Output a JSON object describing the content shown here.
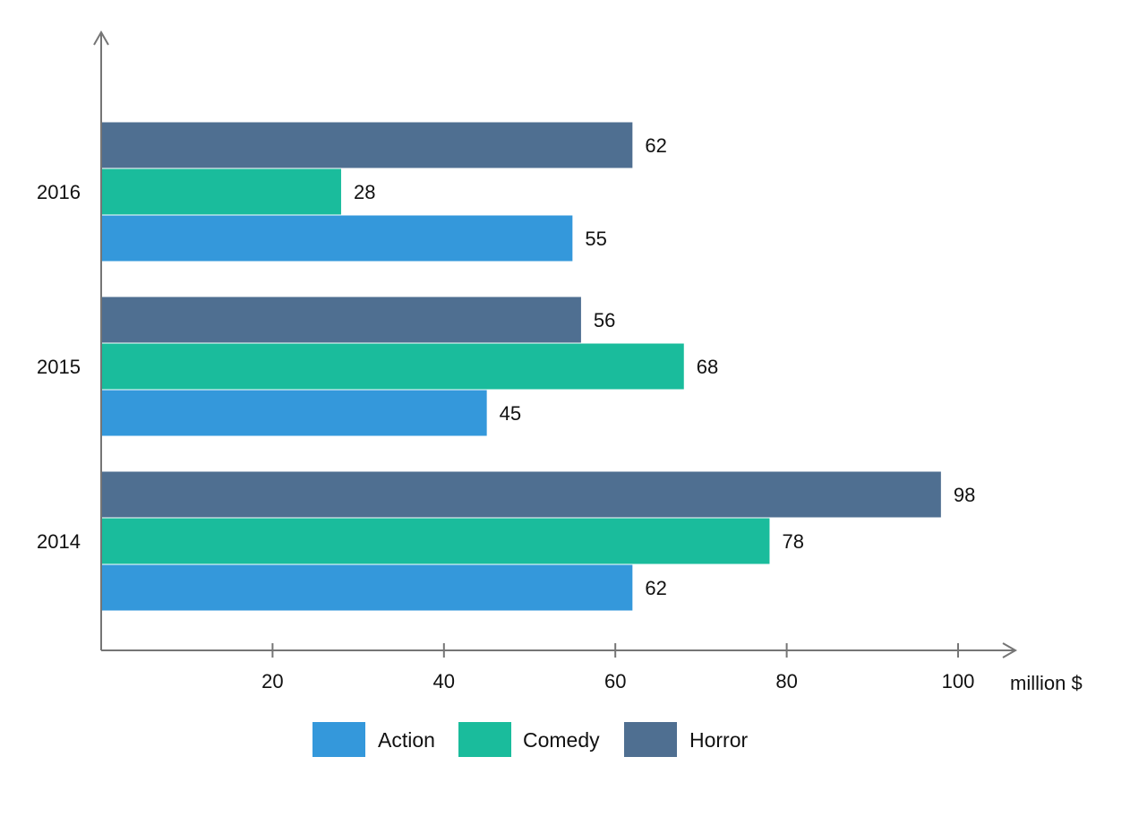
{
  "chart_data": {
    "type": "bar",
    "orientation": "horizontal",
    "categories": [
      "2014",
      "2015",
      "2016"
    ],
    "series": [
      {
        "name": "Action",
        "values": [
          62,
          45,
          55
        ],
        "color": "#3498db"
      },
      {
        "name": "Comedy",
        "values": [
          78,
          68,
          28
        ],
        "color": "#1abc9c"
      },
      {
        "name": "Horror",
        "values": [
          98,
          56,
          62
        ],
        "color": "#4f6f91"
      }
    ],
    "x_ticks": [
      20,
      40,
      60,
      80,
      100
    ],
    "xlim": [
      0,
      100
    ],
    "xlabel": "million $",
    "ylabel": "",
    "title": "",
    "data_labels": true,
    "grid": false,
    "legend_position": "bottom"
  }
}
